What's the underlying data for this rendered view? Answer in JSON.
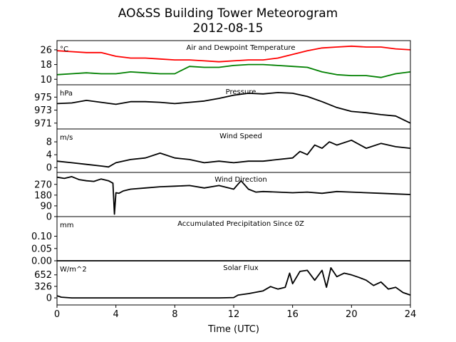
{
  "title": "AO&SS Building Tower Meteorogram",
  "subtitle": "2012-08-15",
  "chart_data": {
    "type": "line",
    "xlabel": "Time (UTC)",
    "xlim": [
      0,
      24
    ],
    "xticks": [
      0,
      4,
      8,
      12,
      16,
      20,
      24
    ],
    "panels": [
      {
        "name": "temperature",
        "title": "Air and Dewpoint Temperature",
        "unit": "°C",
        "ylim": [
          7,
          31
        ],
        "yticks": [
          26,
          18,
          10
        ],
        "series": [
          {
            "color": "#ff0000",
            "x": [
              0,
              1,
              2,
              3,
              4,
              5,
              6,
              7,
              8,
              9,
              10,
              11,
              12,
              13,
              14,
              15,
              16,
              17,
              18,
              19,
              20,
              21,
              22,
              23,
              24
            ],
            "y": [
              25.5,
              25,
              24.5,
              24.5,
              22.5,
              21.5,
              21.5,
              21,
              20.5,
              20.5,
              20,
              19.5,
              20,
              20.5,
              20.5,
              21.5,
              23.5,
              25.5,
              27,
              27.5,
              28,
              27.5,
              27.5,
              26.5,
              26
            ]
          },
          {
            "color": "#008000",
            "x": [
              0,
              1,
              2,
              3,
              4,
              5,
              6,
              7,
              8,
              9,
              10,
              11,
              12,
              13,
              14,
              15,
              16,
              17,
              18,
              19,
              20,
              21,
              22,
              23,
              24
            ],
            "y": [
              12.5,
              13,
              13.5,
              13,
              13,
              14,
              13.5,
              13,
              13,
              17,
              16.5,
              16.5,
              17.5,
              18,
              18,
              17.5,
              17,
              16.5,
              14,
              12.5,
              12,
              12,
              11,
              13,
              14
            ]
          }
        ]
      },
      {
        "name": "pressure",
        "title": "Pressure",
        "unit": "hPa",
        "ylim": [
          970.1,
          976.9
        ],
        "yticks": [
          975,
          973,
          971
        ],
        "series": [
          {
            "color": "#000000",
            "x": [
              0,
              1,
              2,
              3,
              4,
              5,
              6,
              7,
              8,
              9,
              10,
              11,
              12,
              13,
              14,
              15,
              16,
              17,
              18,
              19,
              20,
              21,
              22,
              23,
              24
            ],
            "y": [
              974,
              974.1,
              974.5,
              974.2,
              973.9,
              974.3,
              974.3,
              974.2,
              974,
              974.2,
              974.4,
              974.8,
              975.3,
              975.6,
              975.5,
              975.7,
              975.6,
              975.1,
              974.3,
              973.4,
              972.8,
              972.6,
              972.3,
              972.1,
              971
            ]
          }
        ]
      },
      {
        "name": "wind-speed",
        "title": "Wind Speed",
        "unit": "m/s",
        "ylim": [
          -1.5,
          12
        ],
        "yticks": [
          8,
          4,
          0
        ],
        "series": [
          {
            "color": "#000000",
            "x": [
              0,
              1,
              2,
              3,
              3.5,
              4,
              5,
              6,
              7,
              8,
              9,
              10,
              11,
              12,
              13,
              14,
              15,
              16,
              16.5,
              17,
              17.5,
              18,
              18.5,
              19,
              20,
              21,
              22,
              23,
              24
            ],
            "y": [
              2,
              1.5,
              1,
              0.5,
              0.2,
              1.5,
              2.5,
              3,
              4.5,
              3,
              2.5,
              1.5,
              2,
              1.5,
              2,
              2,
              2.5,
              3,
              5,
              4,
              7,
              6,
              8,
              7,
              8.5,
              6,
              7.5,
              6.5,
              6
            ]
          }
        ]
      },
      {
        "name": "wind-direction",
        "title": "Wind Direction",
        "unit": "",
        "ylim": [
          0,
          370
        ],
        "yticks": [
          270,
          180,
          90,
          0
        ],
        "series": [
          {
            "color": "#000000",
            "x": [
              0,
              0.5,
              1,
              1.5,
              2,
              2.5,
              3,
              3.5,
              3.8,
              3.9,
              4,
              4.2,
              4.5,
              5,
              6,
              7,
              8,
              9,
              10,
              11,
              12,
              12.5,
              13,
              13.5,
              14,
              15,
              16,
              17,
              18,
              19,
              20,
              21,
              22,
              23,
              24
            ],
            "y": [
              330,
              320,
              335,
              310,
              300,
              295,
              315,
              300,
              280,
              20,
              200,
              195,
              215,
              230,
              240,
              250,
              255,
              260,
              240,
              260,
              230,
              300,
              230,
              205,
              210,
              205,
              200,
              205,
              195,
              210,
              205,
              200,
              195,
              190,
              185
            ]
          }
        ]
      },
      {
        "name": "precipitation",
        "title": "Accumulated Precipitation Since 0Z",
        "unit": "mm",
        "ylim": [
          0,
          0.18
        ],
        "yticks": [
          0.1,
          0.05,
          0.0
        ],
        "series": [
          {
            "color": "#000000",
            "x": [
              0,
              24
            ],
            "y": [
              0,
              0
            ]
          }
        ]
      },
      {
        "name": "solar-flux",
        "title": "Solar Flux",
        "unit": "W/m^2",
        "ylim": [
          -200,
          1050
        ],
        "yticks": [
          652,
          326,
          0
        ],
        "series": [
          {
            "color": "#000000",
            "x": [
              0,
              0.3,
              1,
              2,
              4,
              6,
              8,
              10,
              11,
              12,
              12.3,
              13,
              14,
              14.5,
              15,
              15.5,
              15.8,
              16,
              16.5,
              17,
              17.5,
              18,
              18.3,
              18.6,
              19,
              19.5,
              20,
              20.5,
              21,
              21.5,
              22,
              22.5,
              23,
              23.5,
              24
            ],
            "y": [
              60,
              20,
              0,
              0,
              0,
              0,
              0,
              0,
              0,
              10,
              80,
              120,
              200,
              320,
              250,
              300,
              700,
              400,
              750,
              780,
              500,
              780,
              300,
              850,
              600,
              700,
              650,
              580,
              500,
              350,
              450,
              250,
              300,
              150,
              80
            ]
          }
        ]
      }
    ]
  }
}
